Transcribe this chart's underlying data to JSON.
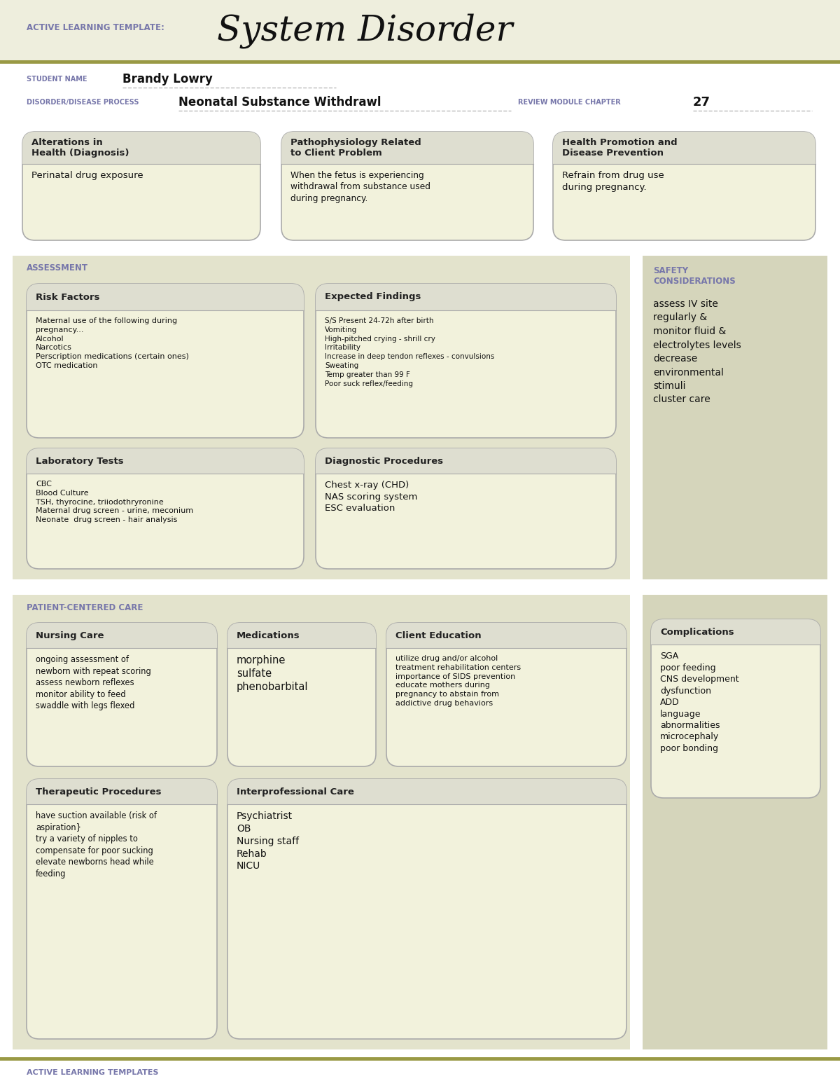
{
  "bg_light_yellow": "#eeeedd",
  "bg_white": "#ffffff",
  "bg_section_left": "#e3e3cc",
  "bg_section_right": "#d5d5bb",
  "box_fill": "#f2f2dc",
  "box_header": "#deded0",
  "box_stroke": "#aaaaaa",
  "purple_text": "#7777aa",
  "dark_text": "#111111",
  "olive_line": "#999944",
  "title_template": "ACTIVE LEARNING TEMPLATE:",
  "title_main": "System Disorder",
  "student_label": "STUDENT NAME",
  "student_name": "Brandy Lowry",
  "disorder_label": "DISORDER/DISEASE PROCESS",
  "disorder_name": "Neonatal Substance Withdrawl",
  "chapter_label": "REVIEW MODULE CHAPTER",
  "chapter_num": "27",
  "box1_title": "Alterations in\nHealth (Diagnosis)",
  "box1_content": "Perinatal drug exposure",
  "box2_title": "Pathophysiology Related\nto Client Problem",
  "box2_content": "When the fetus is experiencing\nwithdrawal from substance used\nduring pregnancy.",
  "box3_title": "Health Promotion and\nDisease Prevention",
  "box3_content": "Refrain from drug use\nduring pregnancy.",
  "section1_label": "ASSESSMENT",
  "section2_label": "SAFETY\nCONSIDERATIONS",
  "safety_content": "assess IV site\nregularly &\nmonitor fluid &\nelectrolytes levels\ndecrease\nenvironmental\nstimuli\ncluster care",
  "rf_title": "Risk Factors",
  "rf_content": "Maternal use of the following during\npregnancy...\nAlcohol\nNarcotics\nPerscription medications (certain ones)\nOTC medication",
  "ef_title": "Expected Findings",
  "ef_content": "S/S Present 24-72h after birth\nVomiting\nHigh-pitched crying - shrill cry\nIrritability\nIncrease in deep tendon reflexes - convulsions\nSweating\nTemp greater than 99 F\nPoor suck reflex/feeding",
  "lt_title": "Laboratory Tests",
  "lt_content": "CBC\nBlood Culture\nTSH, thyrocine, triiodothryronine\nMaternal drug screen - urine, meconium\nNeonate  drug screen - hair analysis",
  "dp_title": "Diagnostic Procedures",
  "dp_content": "Chest x-ray (CHD)\nNAS scoring system\nESC evaluation",
  "section3_label": "PATIENT-CENTERED CARE",
  "comp_title": "Complications",
  "comp_content": "SGA\npoor feeding\nCNS development\ndysfunction\nADD\nlanguage\nabnormalities\nmicrocephaly\npoor bonding",
  "nc_title": "Nursing Care",
  "nc_content": "ongoing assessment of\nnewborn with repeat scoring\nassess newborn reflexes\nmonitor ability to feed\nswaddle with legs flexed",
  "med_title": "Medications",
  "med_content": "morphine\nsulfate\nphenobarbital",
  "ce_title": "Client Education",
  "ce_content": "utilize drug and/or alcohol\ntreatment rehabilitation centers\nimportance of SIDS prevention\neducate mothers during\npregnancy to abstain from\naddictive drug behaviors",
  "tp_title": "Therapeutic Procedures",
  "tp_content": "have suction available (risk of\naspiration}\ntry a variety of nipples to\ncompensate for poor sucking\nelevate newborns head while\nfeeding",
  "ic_title": "Interprofessional Care",
  "ic_content": "Psychiatrist\nOB\nNursing staff\nRehab\nNICU",
  "footer_text": "ACTIVE LEARNING TEMPLATES"
}
